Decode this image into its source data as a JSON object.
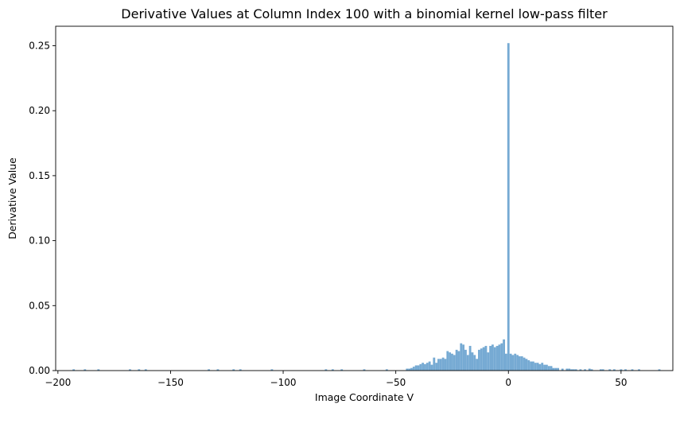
{
  "chart_data": {
    "type": "bar",
    "title": "Derivative Values at Column Index 100 with a binomial kernel low-pass filter",
    "xlabel": "Image Coordinate V",
    "ylabel": "Derivative Value",
    "xlim": [
      -201,
      73
    ],
    "ylim": [
      0,
      0.265
    ],
    "xticks": [
      -200,
      -150,
      -100,
      -50,
      0,
      50
    ],
    "xtick_labels": [
      "−200",
      "−150",
      "−100",
      "−50",
      "0",
      "50"
    ],
    "yticks": [
      0.0,
      0.05,
      0.1,
      0.15,
      0.2,
      0.25
    ],
    "ytick_labels": [
      "0.00",
      "0.05",
      "0.10",
      "0.15",
      "0.20",
      "0.25"
    ],
    "grid": false,
    "bar_color": "#76aad3",
    "bar_width": 1,
    "x": [
      -193,
      -188,
      -182,
      -168,
      -164,
      -161,
      -133,
      -129,
      -122,
      -119,
      -105,
      -81,
      -78,
      -74,
      -64,
      -54,
      -45,
      -44,
      -43,
      -42,
      -41,
      -40,
      -39,
      -38,
      -37,
      -36,
      -35,
      -34,
      -33,
      -32,
      -31,
      -30,
      -29,
      -28,
      -27,
      -26,
      -25,
      -24,
      -23,
      -22,
      -21,
      -20,
      -19,
      -18,
      -17,
      -16,
      -15,
      -14,
      -13,
      -12,
      -11,
      -10,
      -9,
      -8,
      -7,
      -6,
      -5,
      -4,
      -3,
      -2,
      -1,
      0,
      1,
      2,
      3,
      4,
      5,
      6,
      7,
      8,
      9,
      10,
      11,
      12,
      13,
      14,
      15,
      16,
      17,
      18,
      19,
      20,
      21,
      22,
      24,
      26,
      27,
      28,
      29,
      30,
      32,
      34,
      36,
      37,
      41,
      42,
      45,
      47,
      50,
      52,
      55,
      58,
      67
    ],
    "values": [
      0.001,
      0.001,
      0.001,
      0.001,
      0.001,
      0.001,
      0.001,
      0.001,
      0.001,
      0.001,
      0.001,
      0.001,
      0.001,
      0.001,
      0.001,
      0.001,
      0.0015,
      0.0015,
      0.002,
      0.003,
      0.004,
      0.004,
      0.005,
      0.006,
      0.005,
      0.006,
      0.007,
      0.0045,
      0.01,
      0.006,
      0.009,
      0.009,
      0.01,
      0.009,
      0.015,
      0.014,
      0.013,
      0.012,
      0.016,
      0.015,
      0.021,
      0.02,
      0.016,
      0.012,
      0.019,
      0.014,
      0.012,
      0.009,
      0.016,
      0.017,
      0.018,
      0.019,
      0.014,
      0.019,
      0.02,
      0.018,
      0.019,
      0.02,
      0.021,
      0.024,
      0.013,
      0.252,
      0.013,
      0.012,
      0.013,
      0.012,
      0.011,
      0.011,
      0.01,
      0.009,
      0.008,
      0.007,
      0.007,
      0.006,
      0.006,
      0.005,
      0.006,
      0.0045,
      0.0045,
      0.0035,
      0.0035,
      0.002,
      0.002,
      0.002,
      0.0015,
      0.0015,
      0.0015,
      0.001,
      0.001,
      0.001,
      0.001,
      0.001,
      0.0015,
      0.001,
      0.001,
      0.001,
      0.001,
      0.001,
      0.001,
      0.001,
      0.001,
      0.001,
      0.001
    ]
  }
}
